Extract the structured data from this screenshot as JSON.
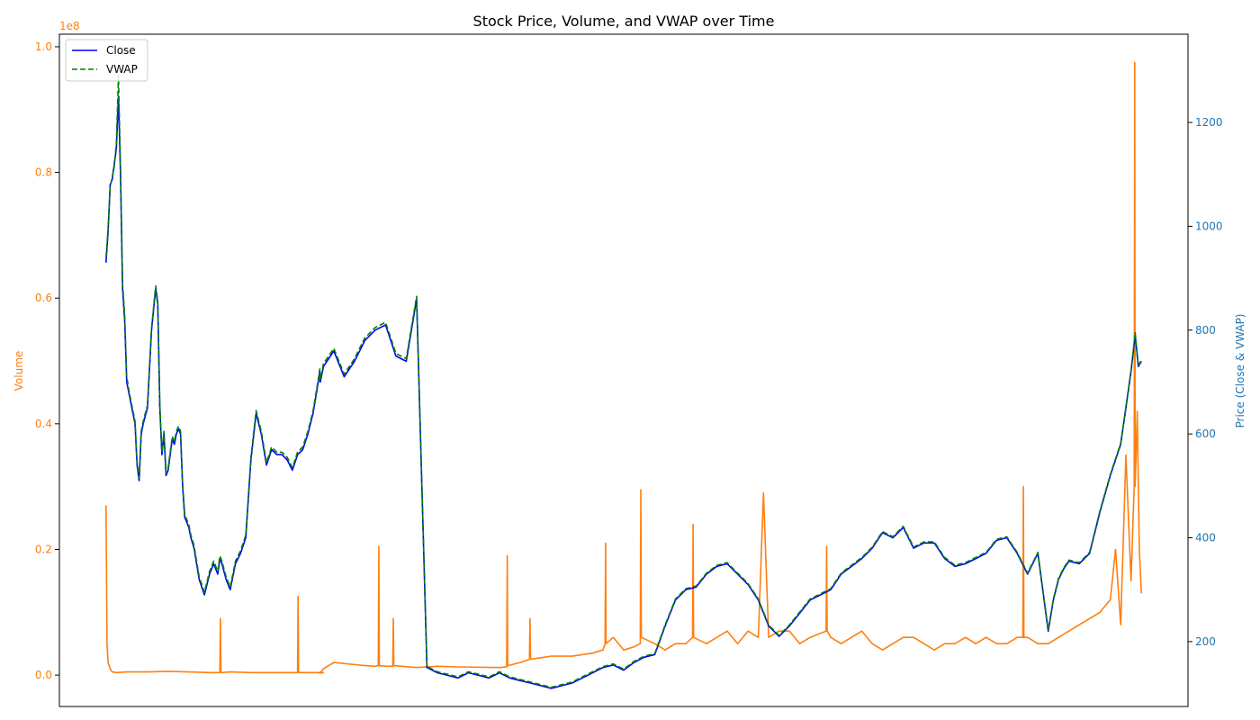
{
  "chart_data": {
    "type": "line",
    "title": "Stock Price, Volume, and VWAP over Time",
    "axes": {
      "left": {
        "label": "Volume",
        "scale_label": "1e8",
        "ylim": [
          -0.05,
          1.02
        ],
        "ticks": [
          0.0,
          0.2,
          0.4,
          0.6,
          0.8,
          1.0
        ],
        "tick_labels": [
          "0.0",
          "0.2",
          "0.4",
          "0.6",
          "0.8",
          "1.0"
        ],
        "color": "#ff7f0e"
      },
      "right": {
        "label": "Price (Close & VWAP)",
        "ylim": [
          75,
          1370
        ],
        "ticks": [
          200,
          400,
          600,
          800,
          1000,
          1200
        ],
        "tick_labels": [
          "200",
          "400",
          "600",
          "800",
          "1000",
          "1200"
        ],
        "color": "#1f77b4"
      },
      "x": {
        "range": [
          -0.045,
          1.045
        ],
        "tick_labels": []
      }
    },
    "legend": {
      "placement": "upper-left",
      "entries": [
        "Close",
        "VWAP"
      ]
    },
    "grid": false,
    "series": [
      {
        "name": "Close",
        "axis": "right",
        "color": "#0000ff",
        "style": "solid",
        "x": [
          0.0,
          0.002,
          0.004,
          0.006,
          0.008,
          0.01,
          0.012,
          0.014,
          0.016,
          0.018,
          0.02,
          0.022,
          0.025,
          0.028,
          0.03,
          0.032,
          0.034,
          0.036,
          0.04,
          0.044,
          0.048,
          0.05,
          0.052,
          0.054,
          0.056,
          0.058,
          0.06,
          0.062,
          0.064,
          0.066,
          0.068,
          0.07,
          0.072,
          0.074,
          0.076,
          0.078,
          0.08,
          0.082,
          0.085,
          0.09,
          0.095,
          0.1,
          0.104,
          0.108,
          0.11,
          0.112,
          0.116,
          0.12,
          0.125,
          0.13,
          0.135,
          0.14,
          0.145,
          0.15,
          0.155,
          0.16,
          0.165,
          0.17,
          0.175,
          0.18,
          0.185,
          0.19,
          0.195,
          0.2,
          0.205,
          0.2065,
          0.207,
          0.21,
          0.22,
          0.23,
          0.24,
          0.25,
          0.26,
          0.27,
          0.28,
          0.29,
          0.3,
          0.31,
          0.32,
          0.33,
          0.34,
          0.35,
          0.36,
          0.37,
          0.38,
          0.39,
          0.4,
          0.41,
          0.42,
          0.43,
          0.44,
          0.45,
          0.46,
          0.47,
          0.48,
          0.49,
          0.5,
          0.51,
          0.52,
          0.53,
          0.54,
          0.55,
          0.56,
          0.57,
          0.58,
          0.59,
          0.6,
          0.61,
          0.62,
          0.63,
          0.64,
          0.65,
          0.66,
          0.67,
          0.68,
          0.69,
          0.7,
          0.71,
          0.72,
          0.73,
          0.74,
          0.75,
          0.76,
          0.77,
          0.78,
          0.79,
          0.8,
          0.81,
          0.82,
          0.83,
          0.84,
          0.85,
          0.86,
          0.87,
          0.88,
          0.89,
          0.9,
          0.91,
          0.915,
          0.92,
          0.925,
          0.93,
          0.94,
          0.95,
          0.96,
          0.97,
          0.98,
          0.985,
          0.99,
          0.994,
          0.997,
          1.0
        ],
        "y": [
          930,
          990,
          1080,
          1090,
          1120,
          1150,
          1250,
          1100,
          880,
          820,
          700,
          680,
          650,
          620,
          540,
          510,
          600,
          620,
          650,
          800,
          880,
          850,
          650,
          560,
          600,
          520,
          530,
          560,
          590,
          580,
          600,
          610,
          600,
          500,
          440,
          430,
          420,
          400,
          380,
          320,
          290,
          330,
          350,
          330,
          360,
          350,
          320,
          300,
          350,
          370,
          400,
          550,
          640,
          600,
          540,
          570,
          560,
          560,
          550,
          530,
          560,
          570,
          600,
          640,
          700,
          720,
          700,
          730,
          760,
          710,
          740,
          780,
          800,
          810,
          750,
          740,
          860,
          150,
          140,
          135,
          130,
          140,
          135,
          130,
          140,
          130,
          125,
          120,
          115,
          110,
          115,
          120,
          130,
          140,
          150,
          155,
          145,
          160,
          170,
          175,
          230,
          280,
          300,
          305,
          330,
          345,
          350,
          330,
          310,
          280,
          230,
          210,
          230,
          255,
          280,
          290,
          300,
          330,
          345,
          360,
          380,
          410,
          400,
          420,
          380,
          390,
          390,
          360,
          345,
          350,
          360,
          370,
          395,
          400,
          370,
          330,
          370,
          220,
          280,
          320,
          340,
          355,
          350,
          370,
          450,
          520,
          580,
          650,
          720,
          790,
          730,
          740
        ]
      },
      {
        "name": "VWAP",
        "axis": "right",
        "color": "#008000",
        "style": "dashed",
        "x": [
          0.0,
          0.002,
          0.004,
          0.006,
          0.008,
          0.01,
          0.012,
          0.014,
          0.016,
          0.018,
          0.02,
          0.022,
          0.025,
          0.028,
          0.03,
          0.032,
          0.034,
          0.036,
          0.04,
          0.044,
          0.048,
          0.05,
          0.052,
          0.054,
          0.056,
          0.058,
          0.06,
          0.062,
          0.064,
          0.066,
          0.068,
          0.07,
          0.072,
          0.074,
          0.076,
          0.078,
          0.08,
          0.082,
          0.085,
          0.09,
          0.095,
          0.1,
          0.104,
          0.108,
          0.11,
          0.112,
          0.116,
          0.12,
          0.125,
          0.13,
          0.135,
          0.14,
          0.145,
          0.15,
          0.155,
          0.16,
          0.165,
          0.17,
          0.175,
          0.18,
          0.185,
          0.19,
          0.195,
          0.2,
          0.205,
          0.2065,
          0.207,
          0.21,
          0.22,
          0.23,
          0.24,
          0.25,
          0.26,
          0.27,
          0.28,
          0.29,
          0.3,
          0.31,
          0.32,
          0.33,
          0.34,
          0.35,
          0.36,
          0.37,
          0.38,
          0.39,
          0.4,
          0.41,
          0.42,
          0.43,
          0.44,
          0.45,
          0.46,
          0.47,
          0.48,
          0.49,
          0.5,
          0.51,
          0.52,
          0.53,
          0.54,
          0.55,
          0.56,
          0.57,
          0.58,
          0.59,
          0.6,
          0.61,
          0.62,
          0.63,
          0.64,
          0.65,
          0.66,
          0.67,
          0.68,
          0.69,
          0.7,
          0.71,
          0.72,
          0.73,
          0.74,
          0.75,
          0.76,
          0.77,
          0.78,
          0.79,
          0.8,
          0.81,
          0.82,
          0.83,
          0.84,
          0.85,
          0.86,
          0.87,
          0.88,
          0.89,
          0.9,
          0.91,
          0.915,
          0.92,
          0.925,
          0.93,
          0.94,
          0.95,
          0.96,
          0.97,
          0.98,
          0.985,
          0.99,
          0.994,
          0.997,
          1.0
        ],
        "y": [
          940,
          995,
          1075,
          1095,
          1115,
          1160,
          1290,
          1110,
          890,
          830,
          710,
          685,
          655,
          625,
          545,
          515,
          605,
          625,
          655,
          805,
          885,
          855,
          655,
          565,
          605,
          525,
          535,
          565,
          595,
          585,
          605,
          615,
          605,
          505,
          445,
          435,
          425,
          405,
          385,
          325,
          295,
          335,
          355,
          335,
          365,
          355,
          325,
          305,
          355,
          375,
          405,
          555,
          645,
          605,
          545,
          575,
          565,
          565,
          555,
          535,
          565,
          575,
          605,
          645,
          705,
          725,
          705,
          735,
          765,
          715,
          745,
          785,
          805,
          815,
          755,
          745,
          865,
          152,
          142,
          137,
          132,
          142,
          137,
          132,
          142,
          132,
          127,
          122,
          117,
          112,
          117,
          122,
          132,
          142,
          152,
          157,
          147,
          162,
          172,
          177,
          232,
          282,
          302,
          307,
          332,
          347,
          352,
          332,
          312,
          282,
          232,
          212,
          232,
          257,
          282,
          292,
          302,
          332,
          347,
          362,
          382,
          412,
          402,
          422,
          382,
          392,
          392,
          362,
          347,
          352,
          362,
          372,
          397,
          402,
          372,
          332,
          372,
          222,
          282,
          322,
          342,
          357,
          352,
          372,
          452,
          522,
          582,
          652,
          722,
          795,
          732,
          742
        ]
      },
      {
        "name": "Volume",
        "axis": "left",
        "color": "#ff7f0e",
        "style": "solid",
        "x": [
          0.0,
          0.001,
          0.002,
          0.004,
          0.006,
          0.01,
          0.02,
          0.04,
          0.06,
          0.08,
          0.1,
          0.11,
          0.1105,
          0.111,
          0.12,
          0.14,
          0.16,
          0.18,
          0.185,
          0.1855,
          0.186,
          0.2,
          0.21,
          0.2065,
          0.21,
          0.22,
          0.25,
          0.26,
          0.263,
          0.2635,
          0.264,
          0.27,
          0.277,
          0.2775,
          0.278,
          0.3,
          0.32,
          0.34,
          0.38,
          0.387,
          0.3875,
          0.388,
          0.4,
          0.409,
          0.4095,
          0.41,
          0.43,
          0.45,
          0.47,
          0.48,
          0.482,
          0.4825,
          0.483,
          0.49,
          0.5,
          0.51,
          0.516,
          0.5165,
          0.517,
          0.53,
          0.54,
          0.55,
          0.56,
          0.5665,
          0.567,
          0.5675,
          0.58,
          0.59,
          0.6,
          0.61,
          0.62,
          0.63,
          0.635,
          0.64,
          0.65,
          0.66,
          0.67,
          0.68,
          0.6955,
          0.696,
          0.6965,
          0.7,
          0.71,
          0.72,
          0.73,
          0.74,
          0.75,
          0.76,
          0.77,
          0.78,
          0.79,
          0.8,
          0.81,
          0.82,
          0.83,
          0.84,
          0.85,
          0.86,
          0.87,
          0.88,
          0.8855,
          0.886,
          0.8865,
          0.89,
          0.9,
          0.91,
          0.92,
          0.93,
          0.94,
          0.95,
          0.96,
          0.97,
          0.975,
          0.98,
          0.985,
          0.99,
          0.993,
          0.9935,
          0.994,
          0.996,
          0.998,
          1.0
        ],
        "y": [
          0.27,
          0.05,
          0.02,
          0.01,
          0.005,
          0.004,
          0.005,
          0.005,
          0.006,
          0.005,
          0.004,
          0.004,
          0.09,
          0.004,
          0.005,
          0.004,
          0.004,
          0.004,
          0.004,
          0.125,
          0.004,
          0.004,
          0.004,
          0.003,
          0.01,
          0.02,
          0.015,
          0.014,
          0.015,
          0.205,
          0.015,
          0.014,
          0.014,
          0.09,
          0.015,
          0.012,
          0.014,
          0.013,
          0.012,
          0.013,
          0.19,
          0.015,
          0.02,
          0.025,
          0.09,
          0.025,
          0.03,
          0.03,
          0.035,
          0.04,
          0.05,
          0.21,
          0.05,
          0.06,
          0.04,
          0.045,
          0.05,
          0.295,
          0.06,
          0.05,
          0.04,
          0.05,
          0.05,
          0.06,
          0.24,
          0.06,
          0.05,
          0.06,
          0.07,
          0.05,
          0.07,
          0.06,
          0.29,
          0.06,
          0.07,
          0.07,
          0.05,
          0.06,
          0.07,
          0.205,
          0.07,
          0.06,
          0.05,
          0.06,
          0.07,
          0.05,
          0.04,
          0.05,
          0.06,
          0.06,
          0.05,
          0.04,
          0.05,
          0.05,
          0.06,
          0.05,
          0.06,
          0.05,
          0.05,
          0.06,
          0.06,
          0.3,
          0.06,
          0.06,
          0.05,
          0.05,
          0.06,
          0.07,
          0.08,
          0.09,
          0.1,
          0.12,
          0.2,
          0.08,
          0.35,
          0.15,
          0.3,
          0.975,
          0.3,
          0.42,
          0.2,
          0.13
        ]
      }
    ]
  }
}
